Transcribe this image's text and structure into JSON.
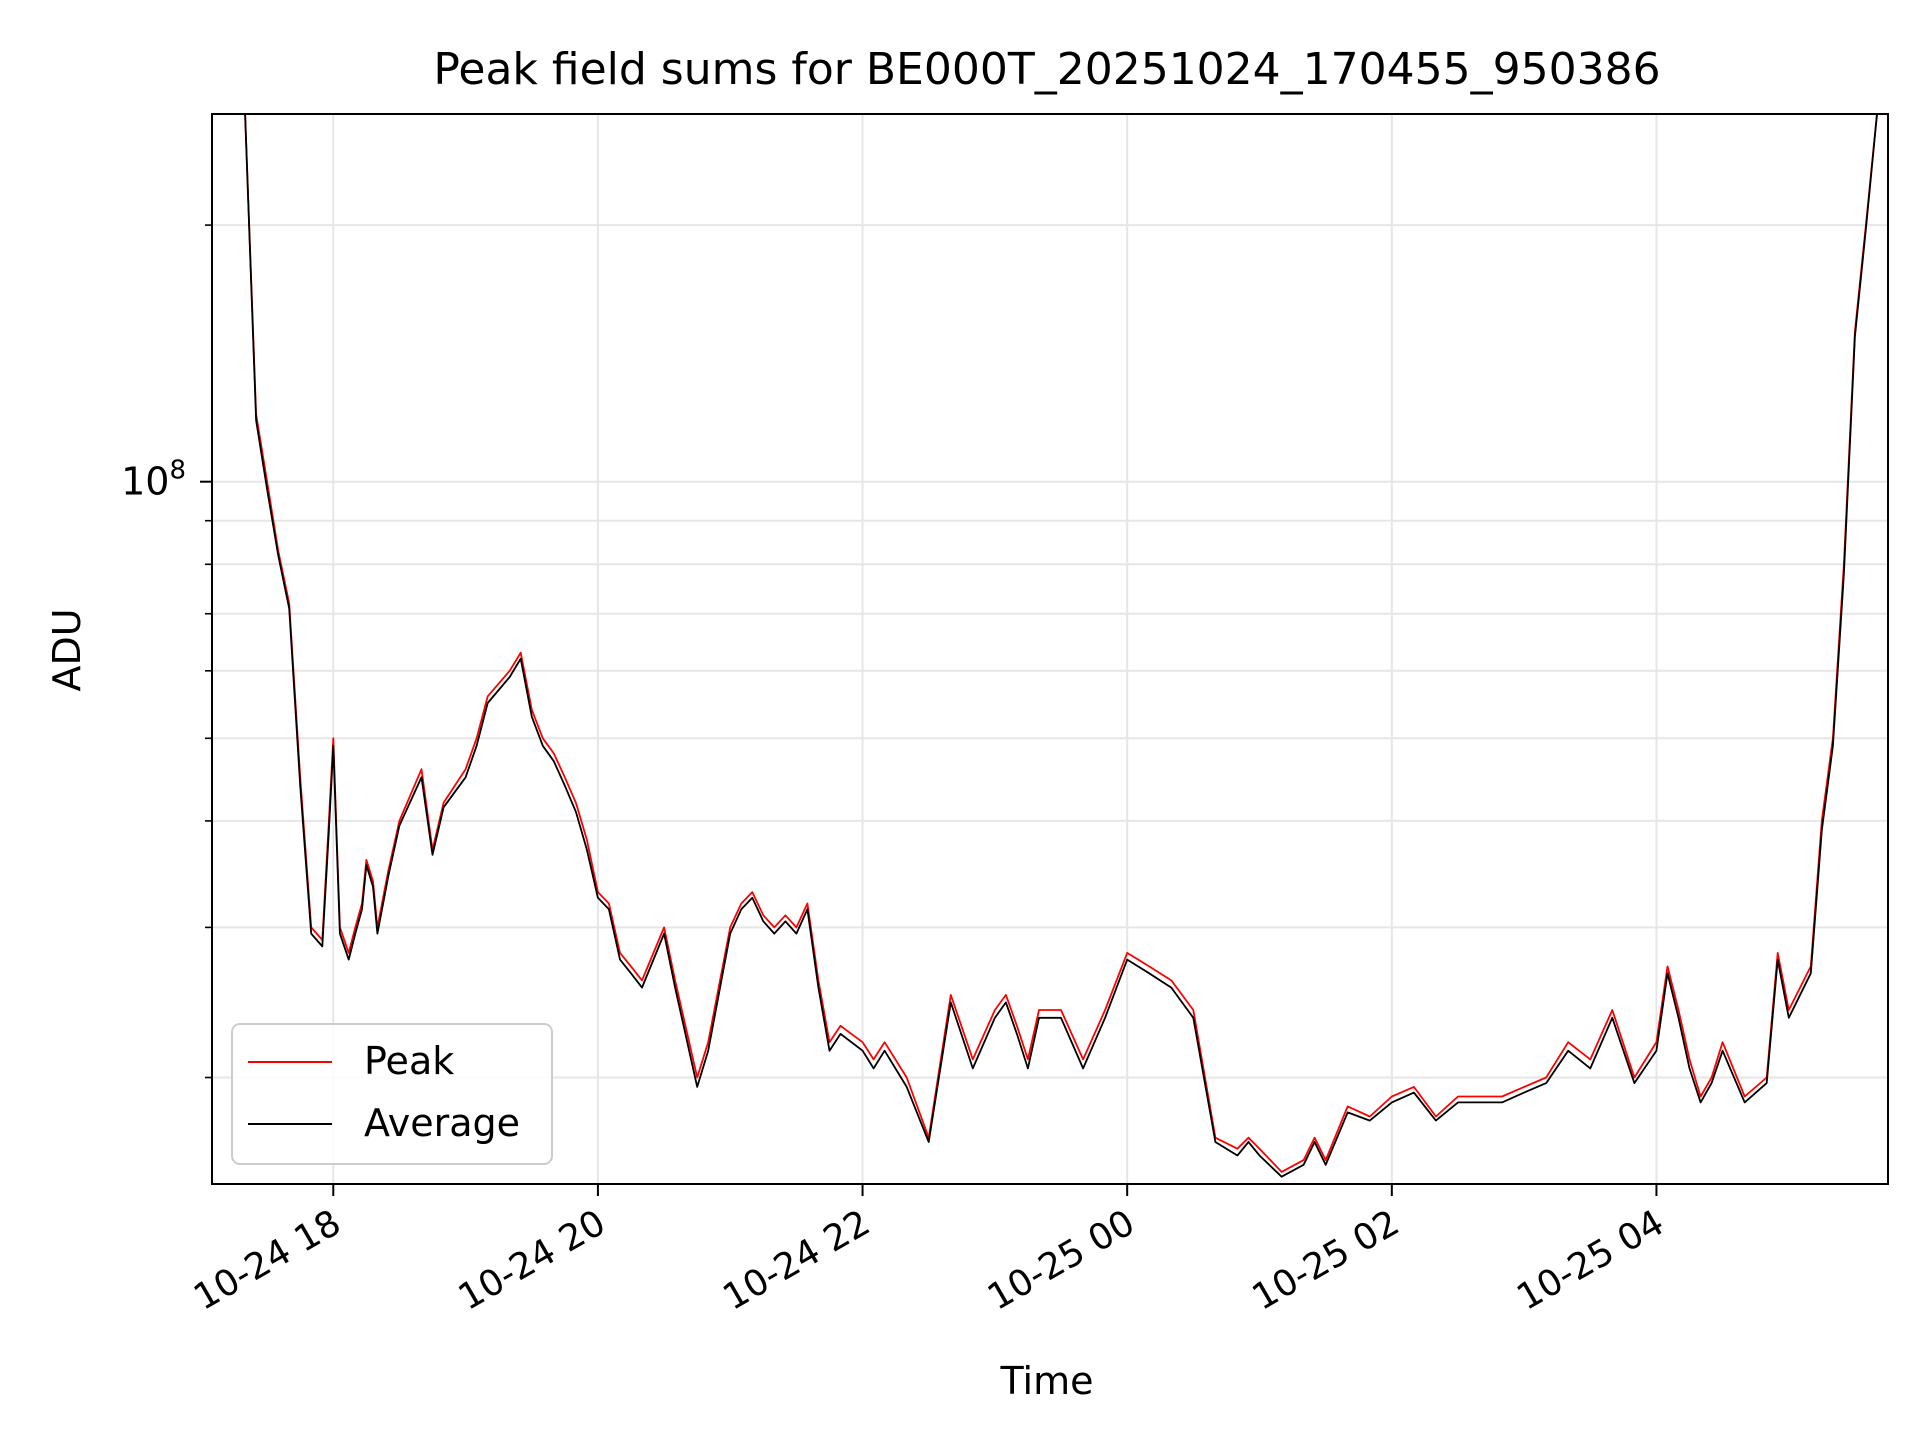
{
  "chart_data": {
    "type": "line",
    "title": "Peak field sums for BE000T_20251024_170455_950386",
    "xlabel": "Time",
    "ylabel": "ADU",
    "yscale": "log",
    "xlim": [
      "2025-10-24 17:05",
      "2025-10-25 05:45"
    ],
    "ylim": [
      15000000,
      270000000
    ],
    "x_ticks": [
      "10-24 18",
      "10-24 20",
      "10-24 22",
      "10-25 00",
      "10-25 02",
      "10-25 04"
    ],
    "x_tick_values": [
      "2025-10-24 18:00",
      "2025-10-24 20:00",
      "2025-10-24 22:00",
      "2025-10-25 00:00",
      "2025-10-25 02:00",
      "2025-10-25 04:00"
    ],
    "y_major_ticks": [
      {
        "value": 100000000,
        "base": "10",
        "exp": "8"
      }
    ],
    "y_minor_ticks": [
      20000000,
      30000000,
      40000000,
      50000000,
      60000000,
      70000000,
      80000000,
      90000000,
      200000000
    ],
    "grid": true,
    "legend_position": "lower-left",
    "series": [
      {
        "name": "Peak",
        "color": "#ff0000"
      },
      {
        "name": "Average",
        "color": "#000000"
      }
    ],
    "x": [
      "17:05",
      "17:20",
      "17:25",
      "17:30",
      "17:35",
      "17:40",
      "17:45",
      "17:50",
      "17:55",
      "17:58",
      "18:00",
      "18:03",
      "18:07",
      "18:10",
      "18:13",
      "18:15",
      "18:18",
      "18:20",
      "18:25",
      "18:30",
      "18:40",
      "18:45",
      "18:50",
      "19:00",
      "19:05",
      "19:10",
      "19:20",
      "19:25",
      "19:30",
      "19:35",
      "19:40",
      "19:45",
      "19:50",
      "19:55",
      "20:00",
      "20:05",
      "20:10",
      "20:15",
      "20:20",
      "20:30",
      "20:35",
      "20:45",
      "20:50",
      "21:00",
      "21:05",
      "21:10",
      "21:15",
      "21:20",
      "21:25",
      "21:30",
      "21:35",
      "21:40",
      "21:45",
      "21:50",
      "22:00",
      "22:05",
      "22:10",
      "22:20",
      "22:30",
      "22:40",
      "22:50",
      "23:00",
      "23:05",
      "23:10",
      "23:15",
      "23:20",
      "23:30",
      "23:40",
      "23:50",
      "00:00",
      "00:10",
      "00:20",
      "00:30",
      "00:40",
      "00:50",
      "00:55",
      "01:00",
      "01:10",
      "01:20",
      "01:25",
      "01:30",
      "01:40",
      "01:50",
      "02:00",
      "02:10",
      "02:20",
      "02:30",
      "02:40",
      "02:50",
      "03:00",
      "03:10",
      "03:20",
      "03:30",
      "03:40",
      "03:50",
      "04:00",
      "04:05",
      "04:10",
      "04:15",
      "04:20",
      "04:25",
      "04:30",
      "04:40",
      "04:50",
      "04:55",
      "05:00",
      "05:10",
      "05:15",
      "05:20",
      "05:25",
      "05:30",
      "05:35",
      "05:40",
      "05:45"
    ],
    "values_peak": [
      270000000,
      270000000,
      120000000,
      100000000,
      83000000,
      72000000,
      45000000,
      30000000,
      29000000,
      40000000,
      50000000,
      30000000,
      28000000,
      30000000,
      32000000,
      36000000,
      34000000,
      30000000,
      35000000,
      40000000,
      46000000,
      37000000,
      42000000,
      46000000,
      50000000,
      56000000,
      60000000,
      63000000,
      54000000,
      50000000,
      48000000,
      45000000,
      42000000,
      38000000,
      33000000,
      32000000,
      28000000,
      27000000,
      26000000,
      30000000,
      26000000,
      20000000,
      22000000,
      30000000,
      32000000,
      33000000,
      31000000,
      30000000,
      31000000,
      30000000,
      32000000,
      26000000,
      22000000,
      23000000,
      22000000,
      21000000,
      22000000,
      20000000,
      17000000,
      25000000,
      21000000,
      24000000,
      25000000,
      23000000,
      21000000,
      24000000,
      24000000,
      21000000,
      24000000,
      28000000,
      27000000,
      26000000,
      24000000,
      17000000,
      16500000,
      17000000,
      16500000,
      15500000,
      16000000,
      17000000,
      16000000,
      18500000,
      18000000,
      19000000,
      19500000,
      18000000,
      19000000,
      19000000,
      19000000,
      19500000,
      20000000,
      22000000,
      21000000,
      24000000,
      20000000,
      22000000,
      27000000,
      24000000,
      21000000,
      19000000,
      20000000,
      22000000,
      19000000,
      20000000,
      28000000,
      24000000,
      27000000,
      40000000,
      50000000,
      80000000,
      150000000,
      200000000,
      270000000,
      270000000
    ],
    "values_avg": [
      270000000,
      270000000,
      118000000,
      98000000,
      82000000,
      71000000,
      44000000,
      29500000,
      28500000,
      39000000,
      49000000,
      29500000,
      27500000,
      29500000,
      31500000,
      35500000,
      33500000,
      29500000,
      34500000,
      39500000,
      45000000,
      36500000,
      41500000,
      45000000,
      49000000,
      55000000,
      59000000,
      62000000,
      53000000,
      49000000,
      47000000,
      44000000,
      41000000,
      37000000,
      32500000,
      31500000,
      27500000,
      26500000,
      25500000,
      29500000,
      25500000,
      19500000,
      21500000,
      29500000,
      31500000,
      32500000,
      30500000,
      29500000,
      30500000,
      29500000,
      31500000,
      25500000,
      21500000,
      22500000,
      21500000,
      20500000,
      21500000,
      19500000,
      16800000,
      24500000,
      20500000,
      23500000,
      24500000,
      22500000,
      20500000,
      23500000,
      23500000,
      20500000,
      23500000,
      27500000,
      26500000,
      25500000,
      23500000,
      16800000,
      16200000,
      16800000,
      16200000,
      15300000,
      15800000,
      16800000,
      15800000,
      18200000,
      17800000,
      18700000,
      19200000,
      17800000,
      18700000,
      18700000,
      18700000,
      19200000,
      19700000,
      21500000,
      20500000,
      23500000,
      19700000,
      21500000,
      26500000,
      23500000,
      20500000,
      18700000,
      19700000,
      21500000,
      18700000,
      19700000,
      27500000,
      23500000,
      26500000,
      39000000,
      49000000,
      78000000,
      148000000,
      198000000,
      270000000,
      270000000
    ]
  }
}
